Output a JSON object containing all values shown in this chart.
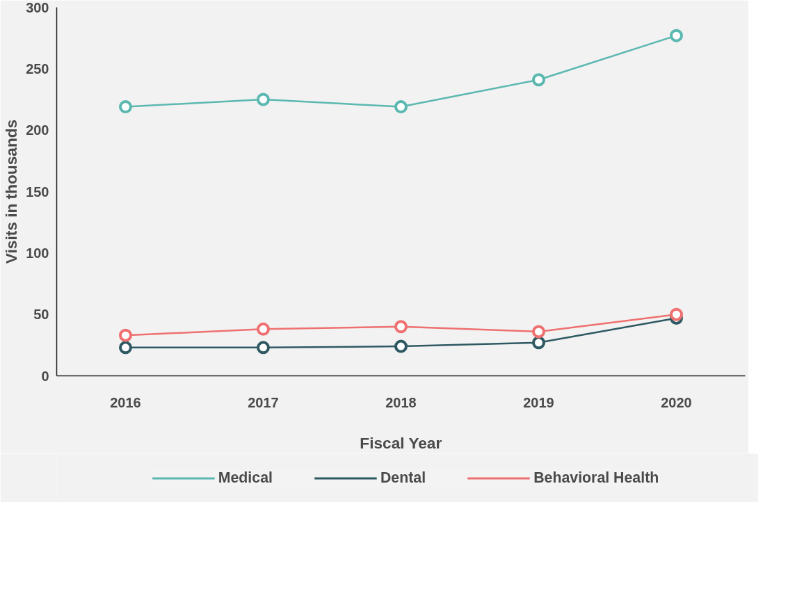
{
  "chart_data": {
    "type": "line",
    "xlabel": "Fiscal Year",
    "ylabel": "Visits in thousands",
    "categories": [
      "2016",
      "2017",
      "2018",
      "2019",
      "2020"
    ],
    "series": [
      {
        "name": "Medical",
        "color": "#5bb8b0",
        "values": [
          219,
          225,
          219,
          241,
          277
        ]
      },
      {
        "name": "Dental",
        "color": "#2f5962",
        "values": [
          23,
          23,
          24,
          27,
          47
        ]
      },
      {
        "name": "Behavioral Health",
        "color": "#ef7070",
        "values": [
          33,
          38,
          40,
          36,
          50
        ]
      }
    ],
    "ylim": [
      0,
      300
    ],
    "yticks": [
      0,
      50,
      100,
      150,
      200,
      250,
      300
    ],
    "grid": false,
    "legend": "bottom",
    "marker": "circle",
    "line_style": "solid"
  }
}
